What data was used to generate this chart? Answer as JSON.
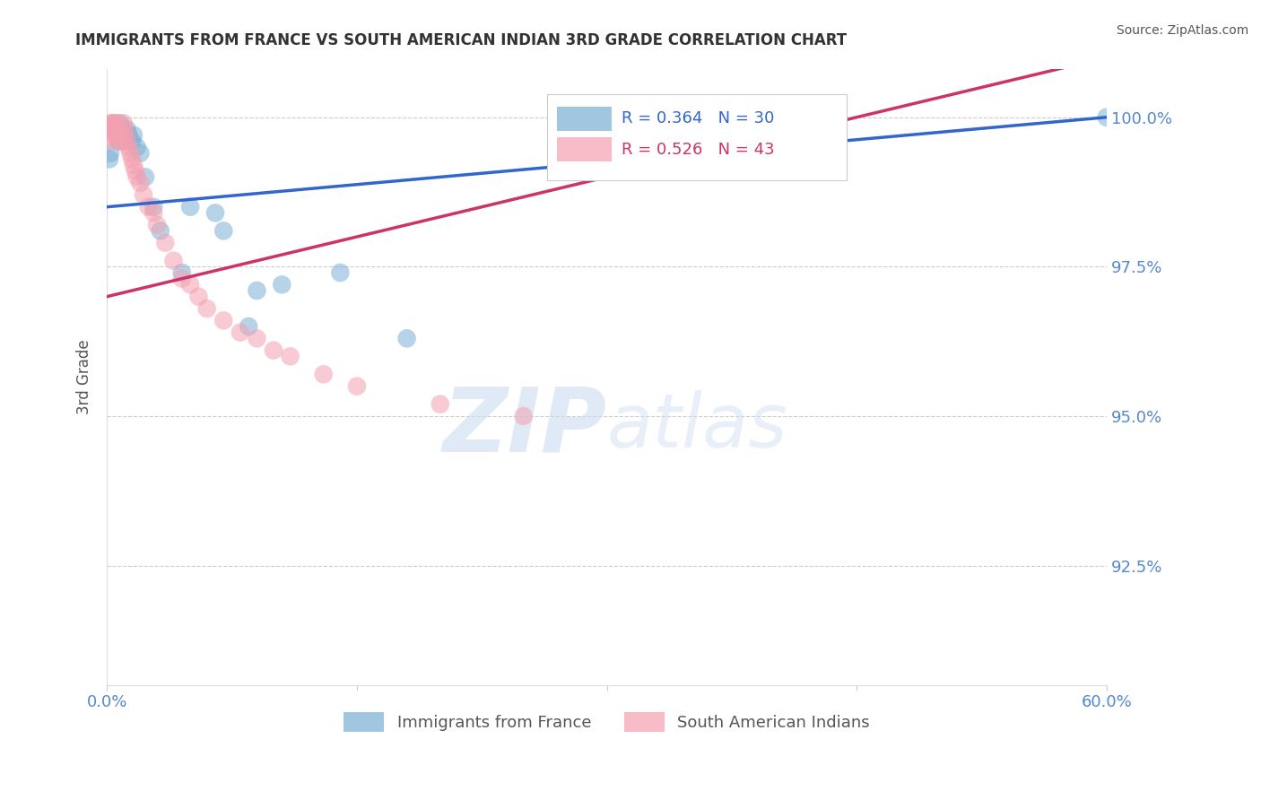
{
  "title": "IMMIGRANTS FROM FRANCE VS SOUTH AMERICAN INDIAN 3RD GRADE CORRELATION CHART",
  "source": "Source: ZipAtlas.com",
  "ylabel": "3rd Grade",
  "xlim": [
    0.0,
    60.0
  ],
  "ylim": [
    0.905,
    1.008
  ],
  "ytick_vals": [
    0.925,
    0.95,
    0.975,
    1.0
  ],
  "ytick_labels": [
    "92.5%",
    "95.0%",
    "97.5%",
    "100.0%"
  ],
  "legend_bottom_blue": "Immigrants from France",
  "legend_bottom_pink": "South American Indians",
  "blue_color": "#7AB0D4",
  "pink_color": "#F4A0B0",
  "blue_line_color": "#3366CC",
  "pink_line_color": "#CC3366",
  "blue_R": 0.364,
  "blue_N": 30,
  "pink_R": 0.526,
  "pink_N": 43,
  "blue_x": [
    0.15,
    0.2,
    0.3,
    0.4,
    0.5,
    0.6,
    0.7,
    0.8,
    0.9,
    1.0,
    1.1,
    1.2,
    1.3,
    1.5,
    1.6,
    1.8,
    2.0,
    2.3,
    2.8,
    3.2,
    4.5,
    5.0,
    6.5,
    7.0,
    8.5,
    9.0,
    10.5,
    14.0,
    18.0,
    60.0
  ],
  "blue_y": [
    0.993,
    0.994,
    0.998,
    0.999,
    0.998,
    0.997,
    0.996,
    0.999,
    0.998,
    0.997,
    0.996,
    0.998,
    0.997,
    0.996,
    0.997,
    0.995,
    0.994,
    0.99,
    0.985,
    0.981,
    0.974,
    0.985,
    0.984,
    0.981,
    0.965,
    0.971,
    0.972,
    0.974,
    0.963,
    1.0
  ],
  "pink_x": [
    0.1,
    0.15,
    0.2,
    0.3,
    0.35,
    0.4,
    0.5,
    0.55,
    0.6,
    0.7,
    0.75,
    0.8,
    0.9,
    1.0,
    1.05,
    1.1,
    1.2,
    1.3,
    1.4,
    1.5,
    1.6,
    1.7,
    1.8,
    2.0,
    2.2,
    2.5,
    2.8,
    3.0,
    3.5,
    4.0,
    4.5,
    5.0,
    5.5,
    6.0,
    7.0,
    8.0,
    9.0,
    10.0,
    11.0,
    13.0,
    15.0,
    20.0,
    25.0
  ],
  "pink_y": [
    0.996,
    0.998,
    0.999,
    0.997,
    0.999,
    0.998,
    0.999,
    0.997,
    0.999,
    0.996,
    0.998,
    0.997,
    0.996,
    0.999,
    0.998,
    0.997,
    0.996,
    0.995,
    0.994,
    0.993,
    0.992,
    0.991,
    0.99,
    0.989,
    0.987,
    0.985,
    0.984,
    0.982,
    0.979,
    0.976,
    0.973,
    0.972,
    0.97,
    0.968,
    0.966,
    0.964,
    0.963,
    0.961,
    0.96,
    0.957,
    0.955,
    0.952,
    0.95
  ],
  "watermark_zip": "ZIP",
  "watermark_atlas": "atlas",
  "background_color": "#ffffff",
  "axis_label_color": "#5588cc",
  "grid_color": "#cccccc",
  "title_color": "#333333"
}
